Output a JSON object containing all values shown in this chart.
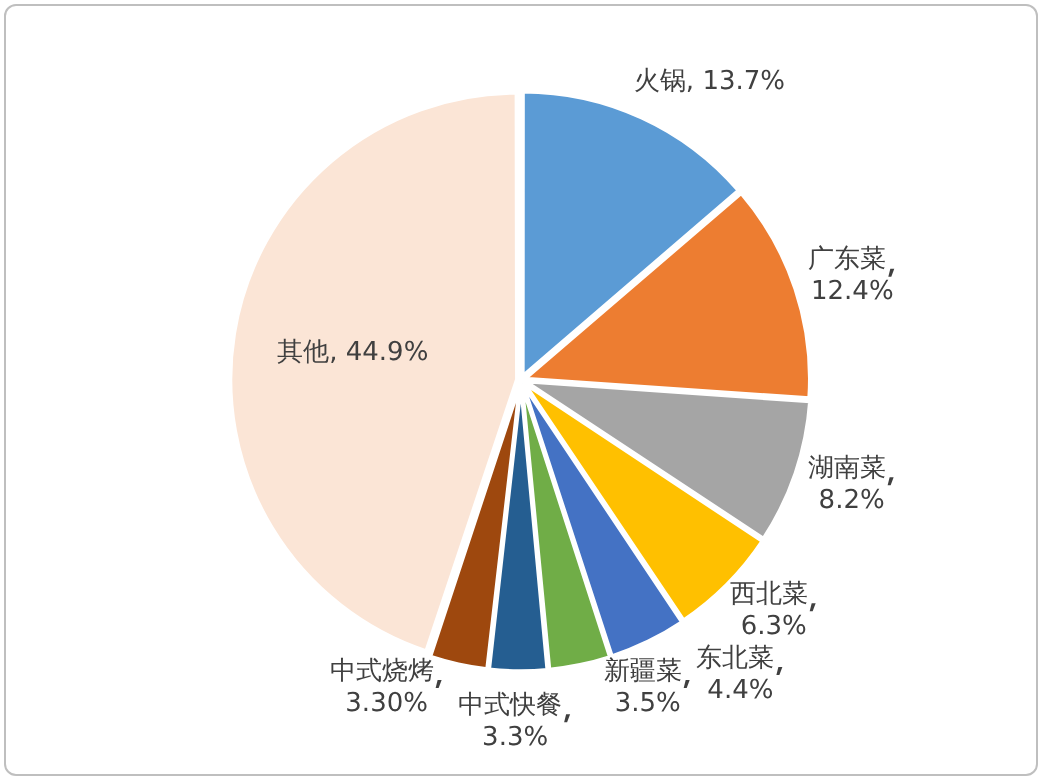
{
  "chart_data": {
    "type": "pie",
    "categories": [
      "火锅",
      "广东菜",
      "湖南菜",
      "西北菜",
      "东北菜",
      "新疆菜",
      "中式快餐",
      "中式烧烤",
      "其他"
    ],
    "values": [
      13.7,
      12.4,
      8.2,
      6.3,
      4.4,
      3.5,
      3.3,
      3.3,
      44.9
    ],
    "colors": [
      "#5b9bd5",
      "#ed7d31",
      "#a5a5a5",
      "#ffc000",
      "#4472c4",
      "#70ad47",
      "#255e91",
      "#9e480e",
      "#fbe5d6"
    ],
    "value_labels": [
      "13.7%",
      "12.4%",
      "8.2%",
      "6.3%",
      "4.4%",
      "3.5%",
      "3.3%",
      "3.30%",
      "44.9%"
    ],
    "legend": false
  }
}
